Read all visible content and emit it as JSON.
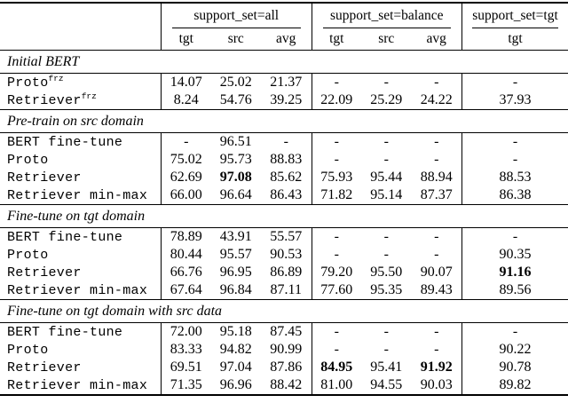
{
  "table": {
    "col_groups": [
      {
        "label": "support_set=all",
        "cols": [
          "tgt",
          "src",
          "avg"
        ]
      },
      {
        "label": "support_set=balance",
        "cols": [
          "tgt",
          "src",
          "avg"
        ]
      },
      {
        "label": "support_set=tgt",
        "cols": [
          "tgt"
        ]
      }
    ],
    "sections": [
      {
        "heading": "Initial BERT",
        "rows": [
          {
            "label": "Proto",
            "sup": "frz",
            "values": [
              "14.07",
              "25.02",
              "21.37",
              "-",
              "-",
              "-",
              "-"
            ],
            "bold": []
          },
          {
            "label": "Retriever",
            "sup": "frz",
            "values": [
              "8.24",
              "54.76",
              "39.25",
              "22.09",
              "25.29",
              "24.22",
              "37.93"
            ],
            "bold": []
          }
        ]
      },
      {
        "heading": "Pre-train on src domain",
        "rows": [
          {
            "label": "BERT fine-tune",
            "sup": "",
            "values": [
              "-",
              "96.51",
              "-",
              "-",
              "-",
              "-",
              "-"
            ],
            "bold": []
          },
          {
            "label": "Proto",
            "sup": "",
            "values": [
              "75.02",
              "95.73",
              "88.83",
              "-",
              "-",
              "-",
              "-"
            ],
            "bold": []
          },
          {
            "label": "Retriever",
            "sup": "",
            "values": [
              "62.69",
              "97.08",
              "85.62",
              "75.93",
              "95.44",
              "88.94",
              "88.53"
            ],
            "bold": [
              1
            ]
          },
          {
            "label": "Retriever min-max",
            "sup": "",
            "values": [
              "66.00",
              "96.64",
              "86.43",
              "71.82",
              "95.14",
              "87.37",
              "86.38"
            ],
            "bold": []
          }
        ]
      },
      {
        "heading": "Fine-tune on tgt domain",
        "rows": [
          {
            "label": "BERT fine-tune",
            "sup": "",
            "values": [
              "78.89",
              "43.91",
              "55.57",
              "-",
              "-",
              "-",
              "-"
            ],
            "bold": []
          },
          {
            "label": "Proto",
            "sup": "",
            "values": [
              "80.44",
              "95.57",
              "90.53",
              "-",
              "-",
              "-",
              "90.35"
            ],
            "bold": []
          },
          {
            "label": "Retriever",
            "sup": "",
            "values": [
              "66.76",
              "96.95",
              "86.89",
              "79.20",
              "95.50",
              "90.07",
              "91.16"
            ],
            "bold": [
              6
            ]
          },
          {
            "label": "Retriever min-max",
            "sup": "",
            "values": [
              "67.64",
              "96.84",
              "87.11",
              "77.60",
              "95.35",
              "89.43",
              "89.56"
            ],
            "bold": []
          }
        ]
      },
      {
        "heading": "Fine-tune on tgt domain with src data",
        "rows": [
          {
            "label": "BERT fine-tune",
            "sup": "",
            "values": [
              "72.00",
              "95.18",
              "87.45",
              "-",
              "-",
              "-",
              "-"
            ],
            "bold": []
          },
          {
            "label": "Proto",
            "sup": "",
            "values": [
              "83.33",
              "94.82",
              "90.99",
              "-",
              "-",
              "-",
              "90.22"
            ],
            "bold": []
          },
          {
            "label": "Retriever",
            "sup": "",
            "values": [
              "69.51",
              "97.04",
              "87.86",
              "84.95",
              "95.41",
              "91.92",
              "90.78"
            ],
            "bold": [
              3,
              5
            ]
          },
          {
            "label": "Retriever min-max",
            "sup": "",
            "values": [
              "71.35",
              "96.96",
              "88.42",
              "81.00",
              "94.55",
              "90.03",
              "89.82"
            ],
            "bold": []
          }
        ]
      }
    ]
  }
}
